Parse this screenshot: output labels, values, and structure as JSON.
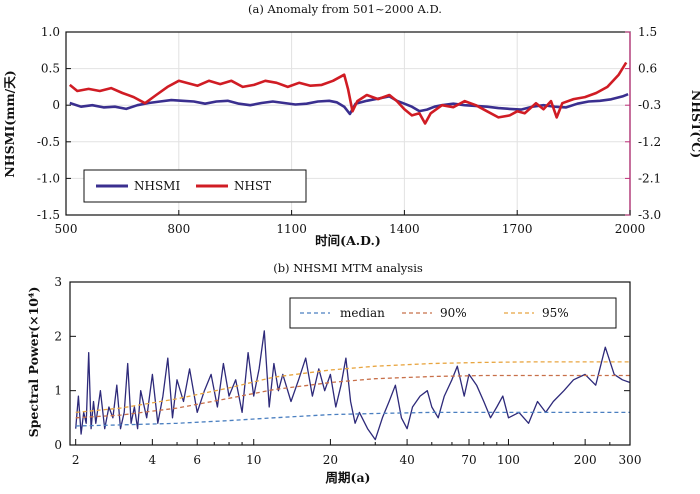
{
  "chart_data": [
    {
      "type": "line",
      "title": "(a) Anomaly from 501~2000 A.D.",
      "xlabel": "时间(A.D.)",
      "ylabel": "NHSMI(mm/天)",
      "y2label": "NHST(℃)",
      "xlim": [
        500,
        2000
      ],
      "ylim": [
        -1.5,
        1.0
      ],
      "y2lim": [
        -3.0,
        1.5
      ],
      "xticks": [
        "500",
        "800",
        "1100",
        "1400",
        "1700",
        "2000"
      ],
      "xtick_values": [
        500,
        800,
        1100,
        1400,
        1700,
        2000
      ],
      "yticks": [
        "1.0",
        "0.5",
        "0",
        "-0.5",
        "-1.0",
        "-1.5"
      ],
      "ytick_values": [
        1.0,
        0.5,
        0,
        -0.5,
        -1.0,
        -1.5
      ],
      "y2ticks": [
        "1.5",
        "0.6",
        "-0.3",
        "-1.2",
        "-2.1",
        "-3.0"
      ],
      "y2tick_values": [
        1.5,
        0.6,
        -0.3,
        -1.2,
        -2.1,
        -3.0
      ],
      "grid": true,
      "legend": {
        "position": "bottom-left",
        "entries": [
          "NHSMI",
          "NHST"
        ]
      },
      "series": [
        {
          "name": "NHSMI",
          "axis": "left",
          "color": "#3a2f8f",
          "x": [
            510,
            540,
            570,
            600,
            630,
            660,
            690,
            720,
            750,
            780,
            810,
            840,
            870,
            900,
            930,
            960,
            990,
            1020,
            1050,
            1080,
            1110,
            1140,
            1170,
            1200,
            1220,
            1240,
            1255,
            1270,
            1300,
            1330,
            1360,
            1380,
            1400,
            1420,
            1440,
            1460,
            1480,
            1500,
            1530,
            1560,
            1590,
            1620,
            1650,
            1680,
            1710,
            1740,
            1770,
            1800,
            1830,
            1860,
            1890,
            1920,
            1950,
            1980,
            1995
          ],
          "values": [
            0.03,
            -0.02,
            0.0,
            -0.03,
            -0.02,
            -0.05,
            0.0,
            0.03,
            0.05,
            0.07,
            0.06,
            0.05,
            0.02,
            0.05,
            0.06,
            0.02,
            0.0,
            0.03,
            0.05,
            0.03,
            0.01,
            0.02,
            0.05,
            0.06,
            0.04,
            -0.02,
            -0.12,
            0.02,
            0.06,
            0.09,
            0.12,
            0.06,
            0.02,
            -0.02,
            -0.08,
            -0.06,
            -0.02,
            0.0,
            0.02,
            0.0,
            -0.01,
            -0.02,
            -0.04,
            -0.05,
            -0.06,
            -0.02,
            0.0,
            -0.02,
            -0.03,
            0.02,
            0.05,
            0.06,
            0.08,
            0.12,
            0.15
          ]
        },
        {
          "name": "NHST",
          "axis": "right",
          "color": "#d01c24",
          "x": [
            510,
            530,
            560,
            590,
            620,
            650,
            680,
            710,
            740,
            770,
            800,
            820,
            850,
            880,
            910,
            940,
            970,
            1000,
            1030,
            1060,
            1090,
            1120,
            1150,
            1180,
            1210,
            1240,
            1250,
            1262,
            1275,
            1300,
            1330,
            1360,
            1380,
            1400,
            1420,
            1440,
            1455,
            1470,
            1500,
            1530,
            1560,
            1590,
            1620,
            1650,
            1680,
            1700,
            1720,
            1750,
            1770,
            1790,
            1805,
            1820,
            1850,
            1880,
            1910,
            1940,
            1970,
            1990
          ],
          "values": [
            0.2,
            0.05,
            0.1,
            0.05,
            0.12,
            0.0,
            -0.1,
            -0.25,
            -0.05,
            0.15,
            0.3,
            0.25,
            0.18,
            0.3,
            0.22,
            0.3,
            0.15,
            0.2,
            0.3,
            0.25,
            0.15,
            0.25,
            0.18,
            0.2,
            0.3,
            0.45,
            0.1,
            -0.45,
            -0.2,
            -0.05,
            -0.15,
            -0.05,
            -0.2,
            -0.4,
            -0.55,
            -0.5,
            -0.75,
            -0.5,
            -0.3,
            -0.35,
            -0.2,
            -0.3,
            -0.45,
            -0.6,
            -0.55,
            -0.45,
            -0.5,
            -0.25,
            -0.4,
            -0.2,
            -0.6,
            -0.25,
            -0.15,
            -0.1,
            0.0,
            0.15,
            0.45,
            0.75
          ]
        }
      ]
    },
    {
      "type": "line",
      "title": "(b) NHSMI MTM analysis",
      "xlabel": "周期(a)",
      "ylabel": "Spectral Power(×10⁴)",
      "xscale": "log",
      "xlim": [
        1.9,
        300
      ],
      "ylim": [
        0,
        3
      ],
      "xticks": [
        "2",
        "4",
        "6",
        "10",
        "20",
        "40",
        "70",
        "100",
        "200",
        "300"
      ],
      "xtick_values": [
        2,
        4,
        6,
        10,
        20,
        40,
        70,
        100,
        200,
        300
      ],
      "yticks": [
        "0",
        "1",
        "2",
        "3"
      ],
      "ytick_values": [
        0,
        1,
        2,
        3
      ],
      "grid": false,
      "legend": {
        "position": "top-right",
        "entries": [
          "median",
          "90%",
          "95%"
        ]
      },
      "series": [
        {
          "name": "Spectrum",
          "color": "#2e2a7a",
          "x": [
            2.0,
            2.05,
            2.1,
            2.15,
            2.2,
            2.25,
            2.3,
            2.35,
            2.4,
            2.5,
            2.6,
            2.7,
            2.8,
            2.9,
            3.0,
            3.1,
            3.2,
            3.3,
            3.4,
            3.5,
            3.6,
            3.8,
            4.0,
            4.2,
            4.4,
            4.6,
            4.8,
            5.0,
            5.3,
            5.6,
            6.0,
            6.4,
            6.8,
            7.2,
            7.6,
            8.0,
            8.5,
            9.0,
            9.5,
            10.0,
            10.5,
            11.0,
            11.5,
            12.0,
            12.5,
            13.0,
            14.0,
            15.0,
            16.0,
            17.0,
            18.0,
            19.0,
            20.0,
            21.0,
            22.0,
            23.0,
            24.0,
            25.0,
            26.0,
            28.0,
            30.0,
            32.0,
            34.0,
            36.0,
            38.0,
            40.0,
            42.0,
            45.0,
            48.0,
            50.0,
            53.0,
            56.0,
            60.0,
            63.0,
            67.0,
            70.0,
            75.0,
            80.0,
            85.0,
            90.0,
            95.0,
            100.0,
            110.0,
            120.0,
            130.0,
            140.0,
            150.0,
            165.0,
            180.0,
            200.0,
            220.0,
            240.0,
            260.0,
            280.0,
            300.0
          ],
          "values": [
            0.3,
            0.9,
            0.2,
            0.6,
            0.4,
            1.7,
            0.3,
            0.8,
            0.4,
            1.0,
            0.3,
            0.7,
            0.5,
            1.1,
            0.3,
            0.6,
            1.5,
            0.4,
            0.7,
            0.3,
            1.0,
            0.5,
            1.3,
            0.4,
            0.9,
            1.6,
            0.5,
            1.2,
            0.8,
            1.4,
            0.6,
            1.0,
            1.3,
            0.7,
            1.5,
            0.9,
            1.2,
            0.6,
            1.7,
            0.9,
            1.4,
            2.1,
            0.7,
            1.5,
            1.0,
            1.3,
            0.8,
            1.2,
            1.6,
            0.9,
            1.4,
            1.0,
            1.3,
            0.7,
            1.1,
            1.6,
            0.8,
            0.4,
            0.6,
            0.3,
            0.1,
            0.5,
            0.8,
            1.1,
            0.5,
            0.3,
            0.7,
            0.9,
            1.0,
            0.7,
            0.5,
            0.9,
            1.2,
            1.45,
            0.9,
            1.3,
            1.1,
            0.8,
            0.5,
            0.7,
            0.9,
            0.5,
            0.6,
            0.4,
            0.8,
            0.6,
            0.8,
            1.0,
            1.2,
            1.3,
            1.1,
            1.8,
            1.3,
            1.2,
            1.15
          ]
        },
        {
          "name": "median",
          "color": "#4a7fc0",
          "dashed": true,
          "x": [
            2,
            3,
            5,
            8,
            12,
            20,
            30,
            50,
            80,
            120,
            200,
            300
          ],
          "values": [
            0.35,
            0.37,
            0.4,
            0.45,
            0.5,
            0.56,
            0.58,
            0.6,
            0.6,
            0.6,
            0.6,
            0.6
          ]
        },
        {
          "name": "90%",
          "color": "#c8704a",
          "dashed": true,
          "x": [
            2,
            3,
            5,
            8,
            12,
            20,
            30,
            50,
            80,
            120,
            200,
            300
          ],
          "values": [
            0.5,
            0.55,
            0.68,
            0.86,
            1.02,
            1.15,
            1.22,
            1.26,
            1.28,
            1.28,
            1.28,
            1.28
          ]
        },
        {
          "name": "95%",
          "color": "#e8a540",
          "dashed": true,
          "x": [
            2,
            3,
            5,
            8,
            12,
            20,
            30,
            50,
            80,
            120,
            200,
            300
          ],
          "values": [
            0.6,
            0.68,
            0.85,
            1.05,
            1.25,
            1.38,
            1.45,
            1.5,
            1.52,
            1.53,
            1.53,
            1.53
          ]
        }
      ]
    }
  ]
}
